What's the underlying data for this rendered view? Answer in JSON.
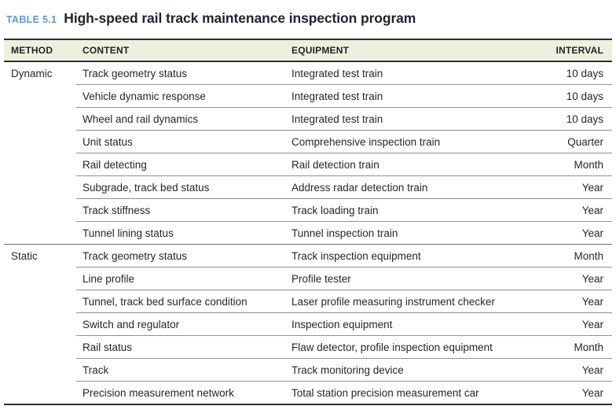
{
  "table": {
    "label": "TABLE 5.1",
    "title": "High-speed rail track maintenance inspection program",
    "columns": [
      "METHOD",
      "CONTENT",
      "EQUIPMENT",
      "INTERVAL"
    ],
    "rows": [
      {
        "method": "Dynamic",
        "content": "Track geometry status",
        "equipment": "Integrated test train",
        "interval": "10 days"
      },
      {
        "method": "",
        "content": "Vehicle dynamic response",
        "equipment": "Integrated test train",
        "interval": "10 days"
      },
      {
        "method": "",
        "content": "Wheel and rail dynamics",
        "equipment": "Integrated test train",
        "interval": "10 days"
      },
      {
        "method": "",
        "content": "Unit status",
        "equipment": "Comprehensive inspection train",
        "interval": "Quarter"
      },
      {
        "method": "",
        "content": "Rail detecting",
        "equipment": "Rail detection train",
        "interval": "Month"
      },
      {
        "method": "",
        "content": "Subgrade, track bed status",
        "equipment": "Address radar detection train",
        "interval": "Year"
      },
      {
        "method": "",
        "content": "Track stiffness",
        "equipment": "Track loading train",
        "interval": "Year"
      },
      {
        "method": "",
        "content": "Tunnel lining status",
        "equipment": "Tunnel inspection train",
        "interval": "Year"
      },
      {
        "method": "Static",
        "content": "Track geometry status",
        "equipment": "Track inspection equipment",
        "interval": "Month"
      },
      {
        "method": "",
        "content": "Line profile",
        "equipment": "Profile tester",
        "interval": "Year"
      },
      {
        "method": "",
        "content": "Tunnel, track bed surface condition",
        "equipment": "Laser profile measuring instrument checker",
        "interval": "Year"
      },
      {
        "method": "",
        "content": "Switch and regulator",
        "equipment": "Inspection equipment",
        "interval": "Year"
      },
      {
        "method": "",
        "content": "Rail status",
        "equipment": "Flaw detector, profile inspection equipment",
        "interval": "Month"
      },
      {
        "method": "",
        "content": "Track",
        "equipment": "Track monitoring device",
        "interval": "Year"
      },
      {
        "method": "",
        "content": "Precision measurement network",
        "equipment": "Total station precision measurement car",
        "interval": "Year"
      }
    ],
    "colors": {
      "header_bg": "#edf0df",
      "label_blue": "#6496c3",
      "title_dark": "#20242e",
      "text_dark": "#26262a",
      "dark_line": "#2f2f2f",
      "row_line": "#919191",
      "section_line": "#6b6b6b",
      "page_bg": "#ffffff"
    }
  }
}
